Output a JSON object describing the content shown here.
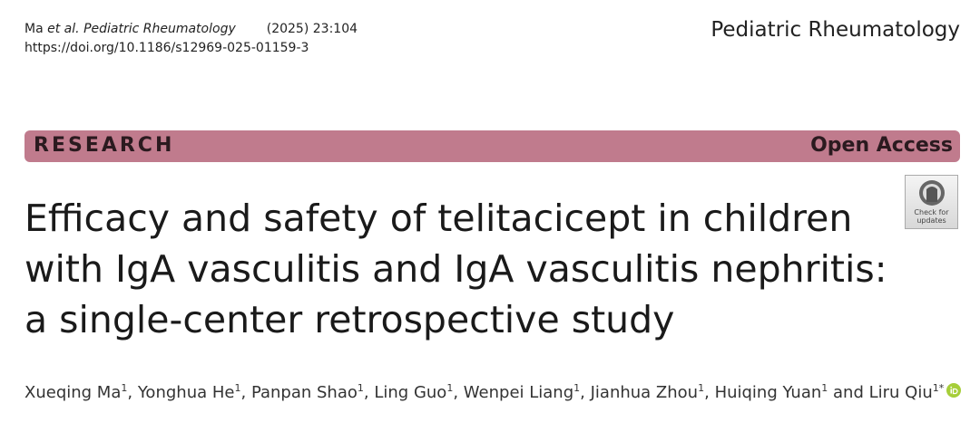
{
  "header": {
    "citation": {
      "author": "Ma",
      "etal": "et al.",
      "journal": "Pediatric Rheumatology",
      "volume": "(2025) 23:104"
    },
    "doi": "https://doi.org/10.1186/s12969-025-01159-3",
    "journal": "Pediatric Rheumatology"
  },
  "banner": {
    "type": "RESEARCH",
    "access": "Open Access"
  },
  "badge": {
    "line1": "Check for",
    "line2": "updates"
  },
  "title": {
    "lines": [
      "Efficacy and safety of telitacicept in children",
      "with IgA vasculitis and IgA vasculitis nephritis:",
      "a single-center retrospective study"
    ]
  },
  "authors": {
    "separator": ",",
    "conjunction": "and",
    "list": [
      {
        "name": "Xueqing Ma",
        "sup": "1"
      },
      {
        "name": "Yonghua He",
        "sup": "1"
      },
      {
        "name": "Panpan Shao",
        "sup": "1"
      },
      {
        "name": "Ling Guo",
        "sup": "1"
      },
      {
        "name": "Wenpei Liang",
        "sup": "1"
      },
      {
        "name": "Jianhua Zhou",
        "sup": "1"
      },
      {
        "name": "Huiqing Yuan",
        "sup": "1"
      },
      {
        "name": "Liru Qiu",
        "sup": "1*"
      }
    ]
  }
}
